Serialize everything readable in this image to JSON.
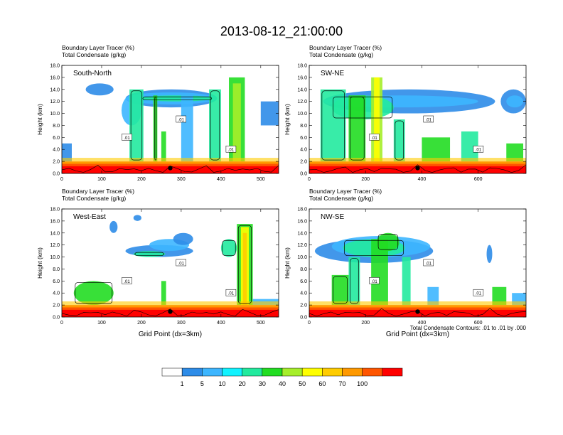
{
  "figure": {
    "title": "2013-08-12_21:00:00",
    "footnote": "Total Condensate Contours: .01 to .01 by .000",
    "xlabel": "Grid Point (dx=3km)"
  },
  "colorbar": {
    "labels": [
      "1",
      "5",
      "10",
      "20",
      "30",
      "40",
      "50",
      "60",
      "70",
      "100"
    ],
    "colors": [
      "#ffffff",
      "#2d8ce8",
      "#3db6ff",
      "#11f3ff",
      "#22ea9e",
      "#22dd22",
      "#a6ee2a",
      "#ffff00",
      "#ffcc00",
      "#ff9900",
      "#ff5500",
      "#ff0000"
    ]
  },
  "chart_data": [
    {
      "type": "heatmap",
      "label": "South-North",
      "header1": "Boundary Layer Tracer    (%)",
      "header2": "Total Condensate    (g/kg)",
      "ylabel": "Height (km)",
      "xlabel": "",
      "xlim": [
        0,
        545
      ],
      "ylim": [
        0,
        18
      ],
      "xticks": [
        "0",
        "100",
        "200",
        "300",
        "400",
        "500"
      ],
      "yticks": [
        "0.0",
        "2.0",
        "4.0",
        "6.0",
        "8.0",
        "10.0",
        "12.0",
        "14.0",
        "16.0",
        "18.0"
      ],
      "contour_label": ".01"
    },
    {
      "type": "heatmap",
      "label": "SW-NE",
      "header1": "Boundary Layer Tracer    (%)",
      "header2": "Total Condensate    (g/kg)",
      "ylabel": "Height (km)",
      "xlabel": "",
      "xlim": [
        0,
        770
      ],
      "ylim": [
        0,
        18
      ],
      "xticks": [
        "0",
        "200",
        "400",
        "600"
      ],
      "yticks": [
        "0.0",
        "2.0",
        "4.0",
        "6.0",
        "8.0",
        "10.0",
        "12.0",
        "14.0",
        "16.0",
        "18.0"
      ],
      "contour_label": ".01"
    },
    {
      "type": "heatmap",
      "label": "West-East",
      "header1": "Boundary Layer Tracer    (%)",
      "header2": "Total Condensate    (g/kg)",
      "ylabel": "Height (km)",
      "xlabel": "Grid Point (dx=3km)",
      "xlim": [
        0,
        545
      ],
      "ylim": [
        0,
        18
      ],
      "xticks": [
        "0",
        "100",
        "200",
        "300",
        "400",
        "500"
      ],
      "yticks": [
        "0.0",
        "2.0",
        "4.0",
        "6.0",
        "8.0",
        "10.0",
        "12.0",
        "14.0",
        "16.0",
        "18.0"
      ],
      "contour_label": ".01"
    },
    {
      "type": "heatmap",
      "label": "NW-SE",
      "header1": "Boundary Layer Tracer    (%)",
      "header2": "Total Condensate    (g/kg)",
      "ylabel": "Height (km)",
      "xlabel": "Grid Point (dx=3km)",
      "xlim": [
        0,
        770
      ],
      "ylim": [
        0,
        18
      ],
      "xticks": [
        "0",
        "200",
        "400",
        "600"
      ],
      "yticks": [
        "0.0",
        "2.0",
        "4.0",
        "6.0",
        "8.0",
        "10.0",
        "12.0",
        "14.0",
        "16.0",
        "18.0"
      ],
      "contour_label": ".01"
    }
  ]
}
